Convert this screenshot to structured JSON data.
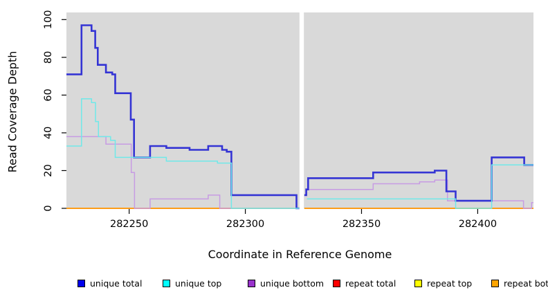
{
  "chart_data": {
    "type": "line",
    "step": true,
    "title": "",
    "xlabel": "Coordinate in Reference Genome",
    "ylabel": "Read Coverage Depth",
    "xlim": [
      282223,
      282424
    ],
    "ylim": [
      0,
      100
    ],
    "xticks": [
      282250,
      282300,
      282350,
      282400
    ],
    "yticks": [
      0,
      20,
      40,
      60,
      80,
      100
    ],
    "grid": false,
    "legend_position": "bottom",
    "plot_bg": "#D9D9D9",
    "gap_x": [
      282323.3,
      282325.2
    ],
    "draw_order": [
      3,
      4,
      5,
      2,
      0,
      1
    ],
    "series": [
      {
        "name": "unique total",
        "legend_color": "#0000EE",
        "line_color": "#3434D4",
        "line_width": 2.6,
        "runs": [
          {
            "points": [
              [
                282223,
                71
              ],
              [
                282229.5,
                97
              ],
              [
                282233.8,
                94
              ],
              [
                282235.4,
                85
              ],
              [
                282236.5,
                76
              ],
              [
                282240,
                72
              ],
              [
                282242.7,
                71
              ],
              [
                282244,
                61
              ],
              [
                282250.7,
                47
              ],
              [
                282252.1,
                27
              ],
              [
                282259,
                33
              ],
              [
                282266,
                32
              ],
              [
                282276,
                31
              ],
              [
                282284,
                33
              ],
              [
                282290,
                31
              ],
              [
                282292,
                30
              ],
              [
                282294,
                7
              ],
              [
                282322,
                0
              ]
            ],
            "end": 282323.3
          },
          {
            "points": [
              [
                282325.4,
                7
              ],
              [
                282326.2,
                10
              ],
              [
                282327,
                16
              ],
              [
                282355,
                19
              ],
              [
                282381.5,
                20
              ],
              [
                282386.5,
                9
              ],
              [
                282390.5,
                4
              ],
              [
                282406,
                27
              ],
              [
                282420,
                23
              ]
            ],
            "end": 282424
          }
        ]
      },
      {
        "name": "unique top",
        "legend_color": "#00FFFF",
        "line_color": "#6FE9E9",
        "line_width": 1.5,
        "runs": [
          {
            "points": [
              [
                282223,
                33
              ],
              [
                282229.5,
                58
              ],
              [
                282233.8,
                56
              ],
              [
                282235.5,
                46
              ],
              [
                282236.8,
                38
              ],
              [
                282242,
                36
              ],
              [
                282244,
                27
              ],
              [
                282266,
                25
              ],
              [
                282288,
                24
              ],
              [
                282294,
                0
              ]
            ],
            "end": 282323.3
          },
          {
            "points": [
              [
                282326.5,
                5
              ],
              [
                282390.5,
                0
              ],
              [
                282406,
                23
              ]
            ],
            "end": 282424
          }
        ]
      },
      {
        "name": "unique bottom",
        "legend_color": "#9933CC",
        "line_color": "#C79BE3",
        "line_width": 1.5,
        "runs": [
          {
            "points": [
              [
                282223,
                38
              ],
              [
                282240,
                34
              ],
              [
                282250.9,
                19
              ],
              [
                282252.3,
                0
              ],
              [
                282259,
                5
              ],
              [
                282284,
                7
              ],
              [
                282289,
                0
              ]
            ],
            "end": 282323.3
          },
          {
            "points": [
              [
                282326.5,
                10
              ],
              [
                282355,
                13
              ],
              [
                282375,
                14
              ],
              [
                282381.5,
                15
              ],
              [
                282387,
                4
              ],
              [
                282419.7,
                0
              ],
              [
                282423.2,
                3
              ]
            ],
            "end": 282424
          }
        ]
      },
      {
        "name": "repeat total",
        "legend_color": "#FF0000",
        "line_color": "#DD0000",
        "line_width": 1.5,
        "runs": [
          {
            "points": [
              [
                282223,
                0
              ]
            ],
            "end": 282323.3
          },
          {
            "points": [
              [
                282325.4,
                0
              ]
            ],
            "end": 282424
          }
        ]
      },
      {
        "name": "repeat top",
        "legend_color": "#FFFF00",
        "line_color": "#F2F200",
        "line_width": 1.5,
        "runs": [
          {
            "points": [
              [
                282223,
                0
              ]
            ],
            "end": 282323.3
          },
          {
            "points": [
              [
                282325.4,
                0
              ]
            ],
            "end": 282424
          }
        ]
      },
      {
        "name": "repeat bottom",
        "legend_color": "#FFA500",
        "line_color": "#FF9914",
        "line_width": 1.8,
        "runs": [
          {
            "points": [
              [
                282223,
                0
              ]
            ],
            "end": 282323.3
          },
          {
            "points": [
              [
                282325.4,
                0
              ]
            ],
            "end": 282424
          }
        ]
      }
    ]
  }
}
